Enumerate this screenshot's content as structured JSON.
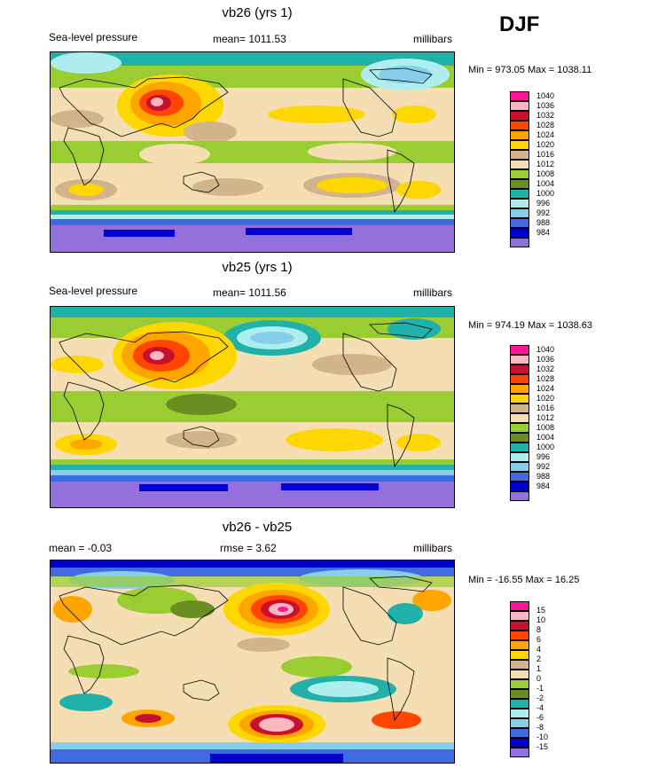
{
  "season": "DJF",
  "chart_data": [
    {
      "type": "heatmap",
      "title": "vb26 (yrs 1)",
      "left_label": "Sea-level pressure",
      "center_label": "mean= 1011.53",
      "right_label": "millibars",
      "minmax": "Min = 973.05 Max = 1038.11",
      "levels": [
        "1040",
        "1036",
        "1032",
        "1028",
        "1024",
        "1020",
        "1016",
        "1012",
        "1008",
        "1004",
        "1000",
        "996",
        "992",
        "988",
        "984"
      ],
      "colors": [
        "#ff1493",
        "#ffb6c1",
        "#c8102e",
        "#ff4500",
        "#ffa500",
        "#ffd700",
        "#d2b48c",
        "#f5deb3",
        "#9acd32",
        "#6b8e23",
        "#20b2aa",
        "#afeeee",
        "#87ceeb",
        "#4169e1",
        "#0000cd"
      ]
    },
    {
      "type": "heatmap",
      "title": "vb25 (yrs 1)",
      "left_label": "Sea-level pressure",
      "center_label": "mean= 1011.56",
      "right_label": "millibars",
      "minmax": "Min = 974.19 Max = 1038.63",
      "levels": [
        "1040",
        "1036",
        "1032",
        "1028",
        "1024",
        "1020",
        "1016",
        "1012",
        "1008",
        "1004",
        "1000",
        "996",
        "992",
        "988",
        "984"
      ],
      "colors": [
        "#ff1493",
        "#ffb6c1",
        "#c8102e",
        "#ff4500",
        "#ffa500",
        "#ffd700",
        "#d2b48c",
        "#f5deb3",
        "#9acd32",
        "#6b8e23",
        "#20b2aa",
        "#afeeee",
        "#87ceeb",
        "#4169e1",
        "#0000cd"
      ]
    },
    {
      "type": "heatmap",
      "title": "vb26 - vb25",
      "left_label": "mean =  -0.03",
      "center_label": "rmse =   3.62",
      "right_label": "millibars",
      "minmax": "Min = -16.55 Max =  16.25",
      "levels": [
        "15",
        "10",
        "8",
        "6",
        "4",
        "2",
        "1",
        "0",
        "-1",
        "-2",
        "-4",
        "-6",
        "-8",
        "-10",
        "-15"
      ],
      "colors": [
        "#ff1493",
        "#ffb6c1",
        "#c8102e",
        "#ff4500",
        "#ffa500",
        "#ffd700",
        "#d2b48c",
        "#f5deb3",
        "#9acd32",
        "#6b8e23",
        "#20b2aa",
        "#afeeee",
        "#87ceeb",
        "#4169e1",
        "#0000cd"
      ]
    }
  ]
}
